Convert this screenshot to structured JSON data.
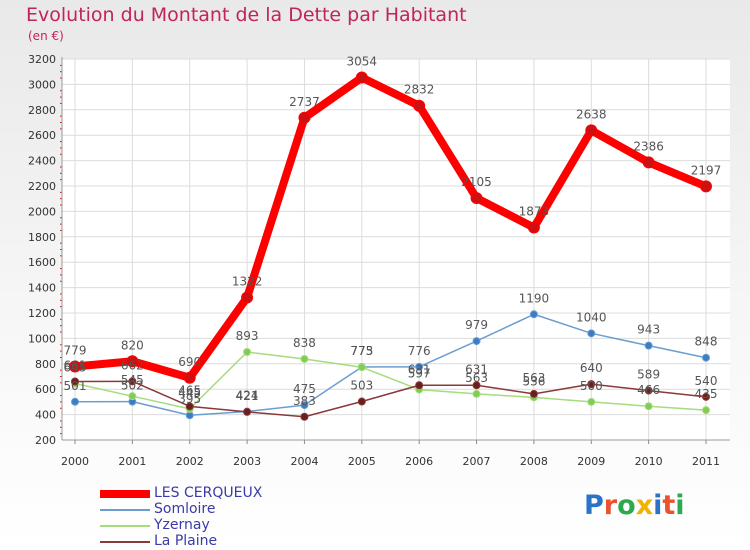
{
  "title": "Evolution du Montant de la Dette par Habitant",
  "subtitle": "(en €)",
  "logo": {
    "text": "Proxiti",
    "colors": [
      "#2a73c9",
      "#e9532e",
      "#2fa84f",
      "#f0b400",
      "#2a73c9",
      "#e9532e",
      "#2fa84f"
    ]
  },
  "chart_data": {
    "type": "line",
    "x": [
      "2000",
      "2001",
      "2002",
      "2003",
      "2004",
      "2005",
      "2006",
      "2007",
      "2008",
      "2009",
      "2010",
      "2011"
    ],
    "ylim": [
      200,
      3200
    ],
    "yticks": [
      "200",
      "400",
      "600",
      "800",
      "1000",
      "1200",
      "1400",
      "1600",
      "1800",
      "2000",
      "2200",
      "2400",
      "2600",
      "2800",
      "3000",
      "3200"
    ],
    "grid": true,
    "legend_position": "bottom-left",
    "series": [
      {
        "name": "LES CERQUEUX",
        "color": "#ff0000",
        "marker": "#d01010",
        "width": 8,
        "values": [
          779,
          820,
          690,
          1322,
          2737,
          3054,
          2832,
          2105,
          1873,
          2638,
          2386,
          2197
        ],
        "labels": [
          "779",
          "820",
          "690",
          "1322",
          "2737",
          "3054",
          "2832",
          "2105",
          "1873",
          "2638",
          "2386",
          "2197"
        ]
      },
      {
        "name": "Somloire",
        "color": "#6a9ed0",
        "marker": "#3d7cc4",
        "width": 1.5,
        "values": [
          501,
          502,
          395,
          424,
          475,
          775,
          776,
          979,
          1190,
          1040,
          943,
          848
        ],
        "labels": [
          "501",
          "502",
          "395",
          "424",
          "475",
          "775",
          "776",
          "979",
          "1190",
          "1040",
          "943",
          "848"
        ]
      },
      {
        "name": "Yzernay",
        "color": "#a6dc7c",
        "marker": "#80cc55",
        "width": 1.5,
        "values": [
          645,
          545,
          445,
          893,
          838,
          773,
          597,
          563,
          536,
          500,
          466,
          435
        ],
        "labels": [
          "645",
          "545",
          "445",
          "893",
          "838",
          "773",
          "597",
          "563",
          "536",
          "500",
          "466",
          "435"
        ]
      },
      {
        "name": "La Plaine",
        "color": "#8a3838",
        "marker": "#6a1f1f",
        "width": 1.5,
        "values": [
          661,
          662,
          465,
          421,
          383,
          503,
          631,
          631,
          563,
          640,
          589,
          540
        ],
        "labels": [
          "661",
          "662",
          "465",
          "421",
          "383",
          "503",
          "631",
          "631",
          "563",
          "640",
          "589",
          "540"
        ]
      }
    ]
  }
}
